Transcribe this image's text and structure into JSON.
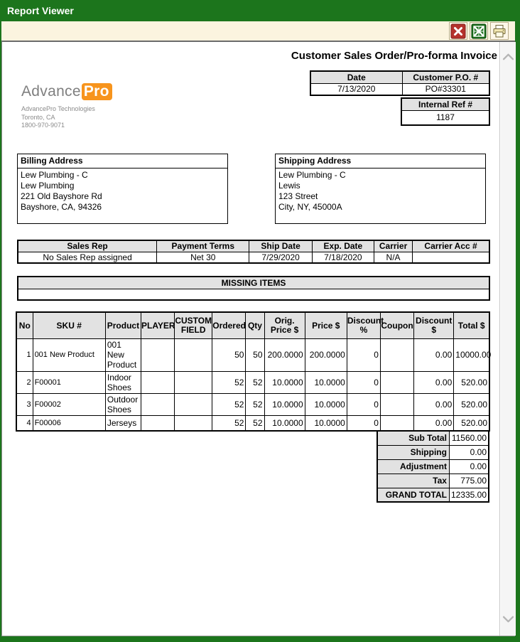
{
  "window": {
    "title": "Report Viewer"
  },
  "toolbar": {
    "buttons": [
      {
        "name": "close-report",
        "icon": "red-x-icon"
      },
      {
        "name": "export-excel",
        "icon": "excel-icon"
      },
      {
        "name": "print",
        "icon": "printer-icon"
      }
    ]
  },
  "colors": {
    "titlebar_green": "#1c751c",
    "toolbar_cream": "#fbf4df",
    "table_header_gray": "#e2e2e2",
    "logo_orange": "#f7941d",
    "close_red": "#b5312c",
    "excel_green": "#1a6e1a"
  },
  "report": {
    "title": "Customer Sales Order/Pro-forma Invoice",
    "logo": {
      "brand_prefix": "Advance",
      "brand_suffix": "Pro",
      "lines": [
        "AdvancePro Technologies",
        "Toronto, CA",
        "1800-970-9071"
      ]
    },
    "order_info": {
      "date_label": "Date",
      "date_value": "7/13/2020",
      "po_label": "Customer P.O. #",
      "po_value": "PO#33301",
      "ref_label": "Internal Ref #",
      "ref_value": "1187"
    },
    "billing": {
      "label": "Billing Address",
      "lines": [
        "Lew Plumbing - C",
        "Lew Plumbing",
        "221 Old Bayshore Rd",
        "Bayshore, CA, 94326"
      ]
    },
    "shipping": {
      "label": "Shipping Address",
      "lines": [
        "Lew Plumbing - C",
        "Lewis",
        "123 Street",
        "City, NY, 45000A"
      ]
    },
    "terms": {
      "headers": [
        "Sales Rep",
        "Payment Terms",
        "Ship Date",
        "Exp. Date",
        "Carrier",
        "Carrier Acc #"
      ],
      "values": [
        "No Sales Rep assigned",
        "Net 30",
        "7/29/2020",
        "7/18/2020",
        "N/A",
        ""
      ]
    },
    "missing_items": {
      "label": "MISSING ITEMS",
      "content": ""
    },
    "items": {
      "headers": [
        "No",
        "SKU #",
        "Product",
        "PLAYER",
        "CUSTOM FIELD",
        "Ordered",
        "Qty",
        "Orig. Price $",
        "Price $",
        "Discount %",
        "Coupon",
        "Discount $",
        "Total $"
      ],
      "rows": [
        [
          "1",
          "001 New Product",
          "001 New Product",
          "",
          "",
          "50",
          "50",
          "200.0000",
          "200.0000",
          "0",
          "",
          "0.00",
          "10000.00"
        ],
        [
          "2",
          "F00001",
          "Indoor Shoes",
          "",
          "",
          "52",
          "52",
          "10.0000",
          "10.0000",
          "0",
          "",
          "0.00",
          "520.00"
        ],
        [
          "3",
          "F00002",
          "Outdoor Shoes",
          "",
          "",
          "52",
          "52",
          "10.0000",
          "10.0000",
          "0",
          "",
          "0.00",
          "520.00"
        ],
        [
          "4",
          "F00006",
          "Jerseys",
          "",
          "",
          "52",
          "52",
          "10.0000",
          "10.0000",
          "0",
          "",
          "0.00",
          "520.00"
        ]
      ]
    },
    "totals": [
      {
        "label": "Sub Total",
        "value": "11560.00"
      },
      {
        "label": "Shipping",
        "value": "0.00"
      },
      {
        "label": "Adjustment",
        "value": "0.00"
      },
      {
        "label": "Tax",
        "value": "775.00"
      },
      {
        "label": "GRAND TOTAL",
        "value": "12335.00"
      }
    ]
  }
}
